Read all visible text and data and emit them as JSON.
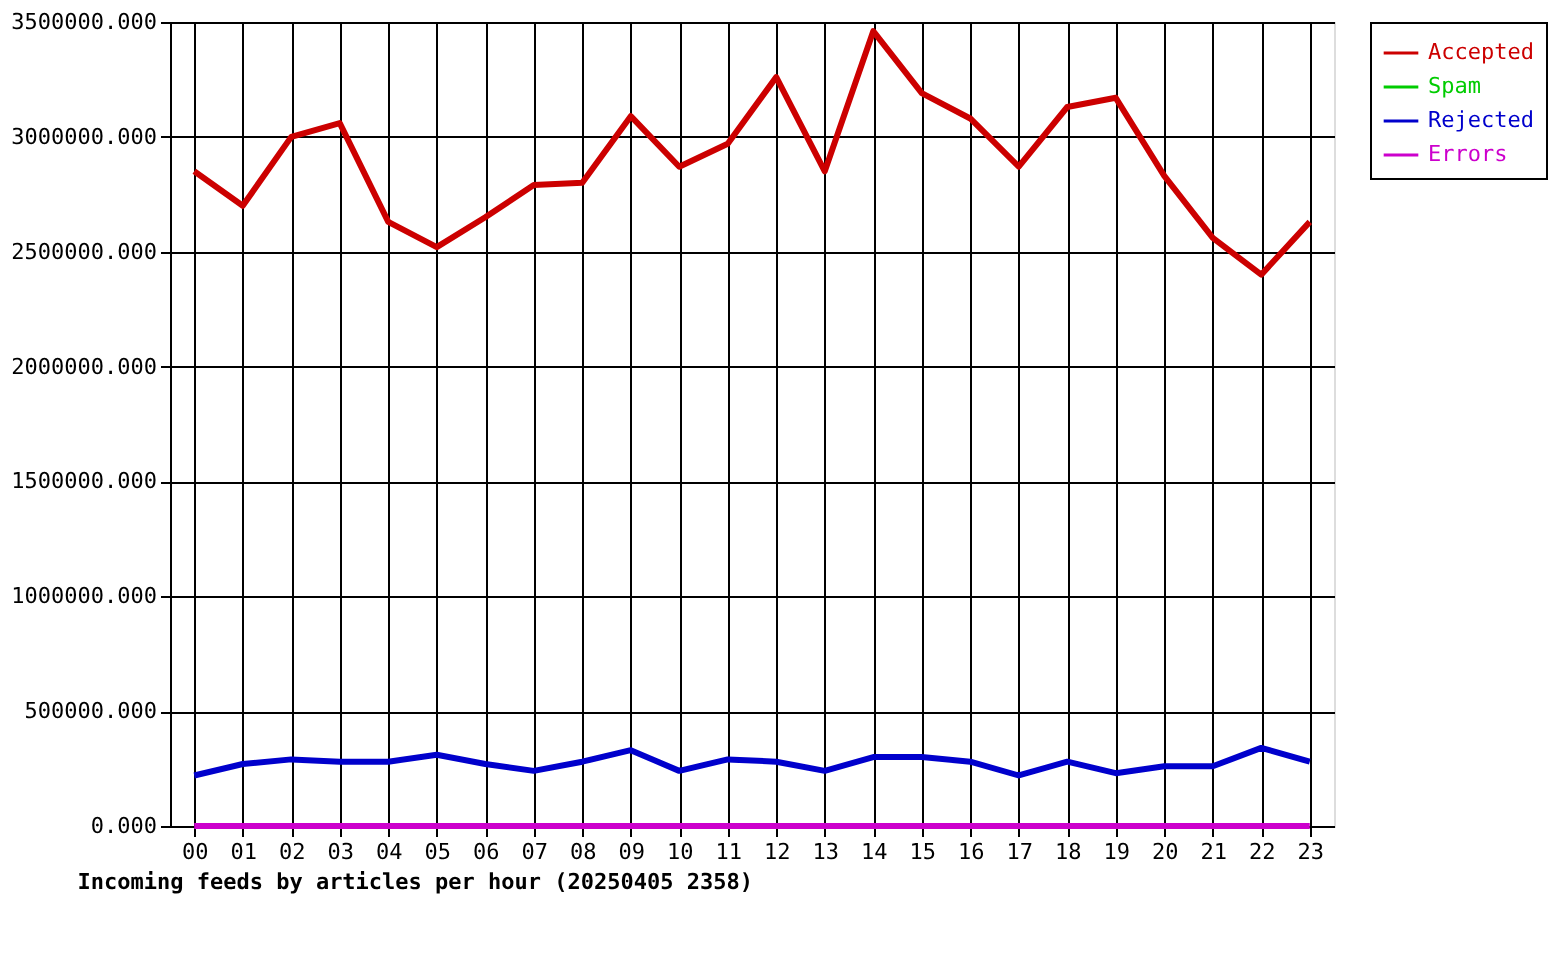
{
  "chart_data": {
    "type": "line",
    "xlabel": "Incoming feeds by articles per hour (20250405 2358)",
    "categories": [
      "00",
      "01",
      "02",
      "03",
      "04",
      "05",
      "06",
      "07",
      "08",
      "09",
      "10",
      "11",
      "12",
      "13",
      "14",
      "15",
      "16",
      "17",
      "18",
      "19",
      "20",
      "21",
      "22",
      "23"
    ],
    "series": [
      {
        "name": "Accepted",
        "color": "#cc0000",
        "values": [
          2850000,
          2700000,
          3000000,
          3060000,
          2630000,
          2520000,
          2650000,
          2790000,
          2800000,
          3090000,
          2870000,
          2970000,
          3260000,
          2850000,
          3460000,
          3190000,
          3080000,
          2870000,
          3130000,
          3170000,
          2830000,
          2560000,
          2400000,
          2630000
        ]
      },
      {
        "name": "Spam",
        "color": "#00cc00",
        "values": [
          null,
          null,
          null,
          null,
          null,
          null,
          null,
          null,
          null,
          null,
          null,
          null,
          null,
          null,
          null,
          null,
          null,
          null,
          null,
          null,
          null,
          null,
          null,
          null
        ]
      },
      {
        "name": "Rejected",
        "color": "#0000cc",
        "values": [
          220000,
          270000,
          290000,
          280000,
          280000,
          310000,
          270000,
          240000,
          280000,
          330000,
          240000,
          290000,
          280000,
          240000,
          300000,
          300000,
          280000,
          220000,
          280000,
          230000,
          260000,
          260000,
          340000,
          280000
        ]
      },
      {
        "name": "Errors",
        "color": "#cc00cc",
        "values": [
          0,
          0,
          0,
          0,
          0,
          0,
          0,
          0,
          0,
          0,
          0,
          0,
          0,
          0,
          0,
          0,
          0,
          0,
          0,
          0,
          0,
          0,
          0,
          0
        ]
      }
    ],
    "ylim": [
      0,
      3500000
    ],
    "yticks": [
      {
        "value": 0,
        "label": "0.000"
      },
      {
        "value": 500000,
        "label": "500000.000"
      },
      {
        "value": 1000000,
        "label": "1000000.000"
      },
      {
        "value": 1500000,
        "label": "1500000.000"
      },
      {
        "value": 2000000,
        "label": "2000000.000"
      },
      {
        "value": 2500000,
        "label": "2500000.000"
      },
      {
        "value": 3000000,
        "label": "3000000.000"
      },
      {
        "value": 3500000,
        "label": "3500000.000"
      }
    ],
    "grid": true,
    "legend": "top right",
    "marker": "none",
    "line_style": "solid"
  }
}
